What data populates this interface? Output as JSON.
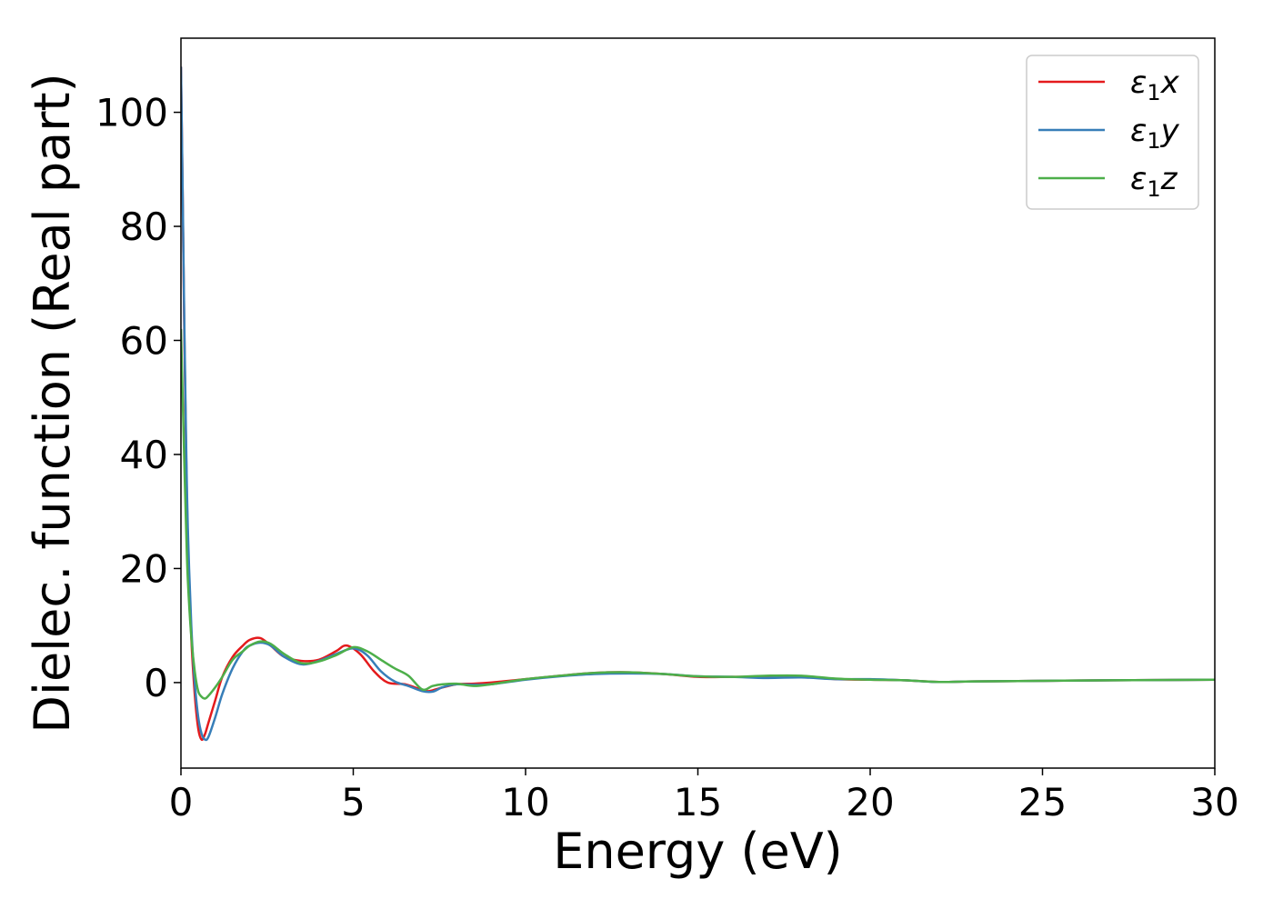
{
  "chart_data": {
    "type": "line",
    "title": "",
    "xlabel": "Energy (eV)",
    "ylabel": "Dielec. function (Real part)",
    "xlim": [
      0,
      30
    ],
    "ylim": [
      -15,
      113
    ],
    "xticks": [
      0,
      5,
      10,
      15,
      20,
      25,
      30
    ],
    "yticks": [
      0,
      20,
      40,
      60,
      80,
      100
    ],
    "grid": false,
    "legend": "top-right",
    "series": [
      {
        "name": "ε1x",
        "legend": {
          "base": "ε",
          "sub": "1",
          "tail": "x"
        },
        "color": "#e41a1c",
        "x": [
          0,
          0.05,
          0.1,
          0.15,
          0.2,
          0.3,
          0.4,
          0.5,
          0.6,
          0.7,
          0.8,
          1.0,
          1.2,
          1.5,
          1.8,
          2.0,
          2.3,
          2.6,
          3.0,
          3.5,
          4.0,
          4.5,
          4.8,
          5.2,
          5.6,
          6.0,
          6.5,
          7.0,
          7.2,
          7.5,
          8.0,
          8.5,
          9.0,
          10.0,
          11.0,
          12.0,
          13.0,
          14.0,
          15.0,
          16.0,
          17.0,
          18.0,
          19.0,
          20.0,
          21.0,
          22.0,
          23.0,
          25.0,
          27.0,
          30.0
        ],
        "y": [
          108,
          85,
          60,
          40,
          25,
          8,
          -2,
          -8,
          -10,
          -9,
          -7,
          -3,
          1,
          4.5,
          6.5,
          7.5,
          7.8,
          6.5,
          4.5,
          3.8,
          4,
          5.5,
          6.5,
          5,
          2,
          0,
          -0.3,
          -1.3,
          -1.5,
          -1,
          -0.3,
          -0.2,
          0,
          0.6,
          1.2,
          1.7,
          1.8,
          1.5,
          1,
          1,
          1,
          1,
          0.6,
          0.5,
          0.4,
          0.1,
          0.2,
          0.3,
          0.4,
          0.5
        ]
      },
      {
        "name": "ε1y",
        "legend": {
          "base": "ε",
          "sub": "1",
          "tail": "y"
        },
        "color": "#377eb8",
        "x": [
          0,
          0.05,
          0.1,
          0.15,
          0.2,
          0.3,
          0.4,
          0.5,
          0.6,
          0.7,
          0.8,
          1.0,
          1.2,
          1.5,
          1.8,
          2.0,
          2.3,
          2.6,
          3.0,
          3.5,
          4.0,
          4.5,
          5.0,
          5.4,
          5.8,
          6.2,
          6.6,
          7.0,
          7.3,
          7.6,
          8.0,
          8.5,
          9.0,
          10.0,
          11.0,
          12.0,
          13.0,
          14.0,
          15.0,
          16.0,
          17.0,
          18.0,
          19.0,
          20.0,
          21.0,
          22.0,
          23.0,
          25.0,
          27.0,
          30.0
        ],
        "y": [
          108,
          86,
          62,
          42,
          27,
          10,
          0,
          -6,
          -9,
          -10,
          -9.5,
          -6,
          -2,
          2.5,
          5.5,
          6.5,
          7,
          6.5,
          4.5,
          3.2,
          3.8,
          5,
          6,
          4.8,
          2,
          0.2,
          -0.6,
          -1.5,
          -1.6,
          -0.8,
          -0.3,
          -0.4,
          -0.3,
          0.5,
          1.1,
          1.5,
          1.6,
          1.5,
          1.1,
          1,
          0.8,
          0.9,
          0.6,
          0.6,
          0.4,
          0.1,
          0.2,
          0.3,
          0.4,
          0.5
        ]
      },
      {
        "name": "ε1z",
        "legend": {
          "base": "ε",
          "sub": "1",
          "tail": "z"
        },
        "color": "#4daf4a",
        "x": [
          0,
          0.05,
          0.1,
          0.15,
          0.2,
          0.3,
          0.4,
          0.5,
          0.6,
          0.7,
          0.8,
          1.0,
          1.2,
          1.5,
          1.8,
          2.0,
          2.3,
          2.6,
          3.0,
          3.5,
          4.0,
          4.5,
          5.0,
          5.4,
          5.8,
          6.2,
          6.6,
          7.0,
          7.3,
          7.6,
          8.0,
          8.5,
          9.0,
          10.0,
          11.0,
          12.0,
          13.0,
          14.0,
          15.0,
          16.0,
          17.0,
          18.0,
          19.0,
          20.0,
          21.0,
          22.0,
          23.0,
          25.0,
          27.0,
          30.0
        ],
        "y": [
          62,
          50,
          38,
          27,
          18,
          8,
          2,
          -1.5,
          -2.5,
          -2.8,
          -2.3,
          -0.8,
          1,
          4,
          5.5,
          6.5,
          7.2,
          6.8,
          5,
          3.4,
          3.7,
          4.8,
          6.2,
          5.5,
          4,
          2.5,
          1.2,
          -1.2,
          -0.6,
          -0.3,
          -0.2,
          -0.6,
          -0.3,
          0.6,
          1.2,
          1.7,
          1.8,
          1.5,
          1.1,
          1,
          1.2,
          1.2,
          0.7,
          0.5,
          0.4,
          0.1,
          0.2,
          0.3,
          0.4,
          0.5
        ]
      }
    ]
  }
}
